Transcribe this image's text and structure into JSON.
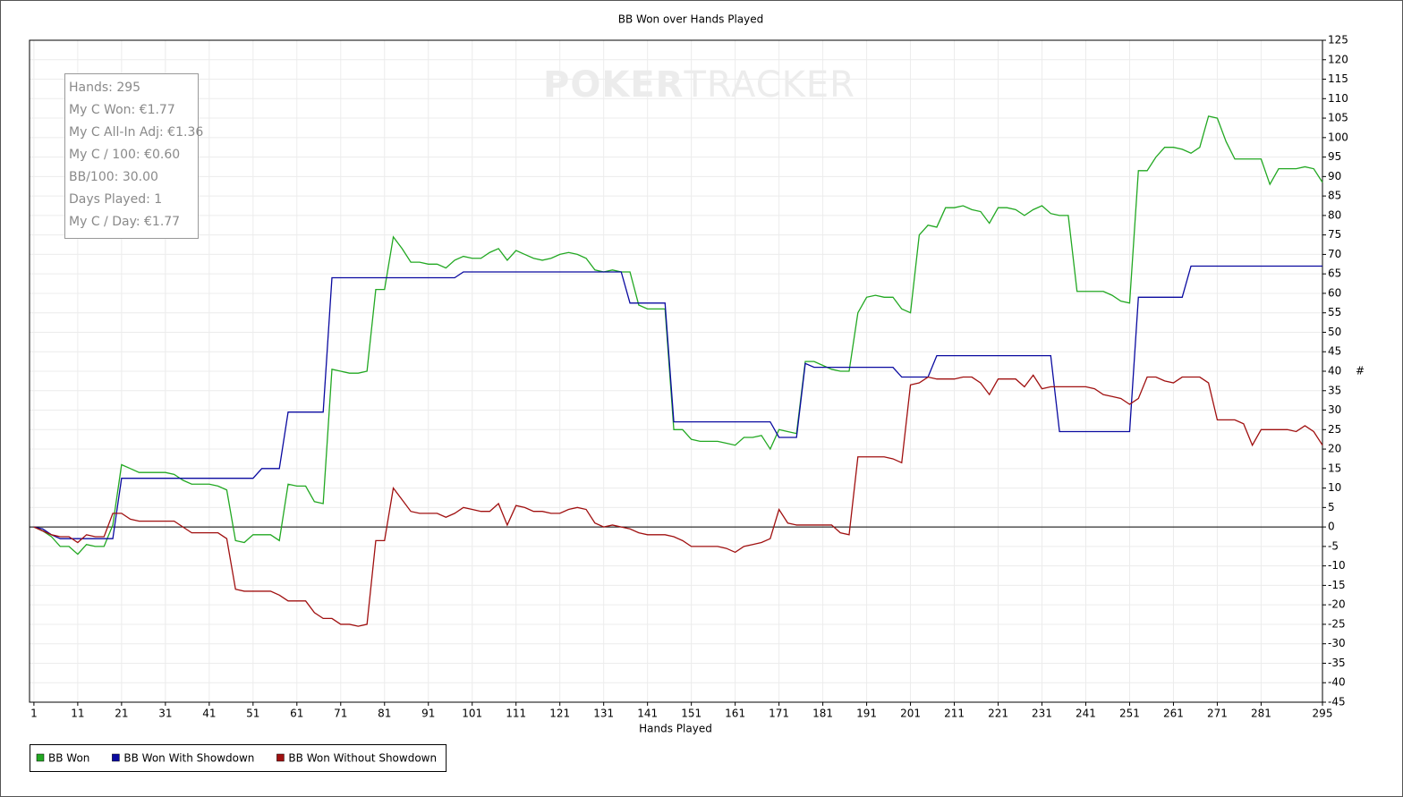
{
  "chart_data": {
    "type": "line",
    "title": "BB Won over Hands Played",
    "xlabel": "Hands Played",
    "ylabel": "#",
    "watermark": [
      "POKER",
      "TRACKER"
    ],
    "stats": [
      "Hands: 295",
      "My C Won: €1.77",
      "My C All-In Adj: €1.36",
      "My C / 100: €0.60",
      "BB/100: 30.00",
      "Days Played: 1",
      "My C / Day: €1.77"
    ],
    "grid": true,
    "legend": "bottom-left",
    "xlim": [
      0,
      295
    ],
    "ylim": [
      -45,
      125
    ],
    "xticks": [
      1,
      11,
      21,
      31,
      41,
      51,
      61,
      71,
      81,
      91,
      101,
      111,
      121,
      131,
      141,
      151,
      161,
      171,
      181,
      191,
      201,
      211,
      221,
      231,
      241,
      251,
      261,
      271,
      281,
      295
    ],
    "yticks": [
      -45,
      -40,
      -35,
      -30,
      -25,
      -20,
      -15,
      -10,
      -5,
      0,
      5,
      10,
      15,
      20,
      25,
      30,
      35,
      40,
      45,
      50,
      55,
      60,
      65,
      70,
      75,
      80,
      85,
      90,
      95,
      100,
      105,
      110,
      115,
      120,
      125
    ],
    "x": [
      1,
      3,
      5,
      7,
      9,
      11,
      13,
      15,
      17,
      19,
      21,
      23,
      25,
      27,
      29,
      31,
      33,
      35,
      37,
      39,
      41,
      43,
      45,
      47,
      49,
      51,
      53,
      55,
      57,
      59,
      61,
      63,
      65,
      67,
      69,
      71,
      73,
      75,
      77,
      79,
      81,
      83,
      85,
      87,
      89,
      91,
      93,
      95,
      97,
      99,
      101,
      103,
      105,
      107,
      109,
      111,
      113,
      115,
      117,
      119,
      121,
      123,
      125,
      127,
      129,
      131,
      133,
      135,
      137,
      139,
      141,
      143,
      145,
      147,
      149,
      151,
      153,
      155,
      157,
      159,
      161,
      163,
      165,
      167,
      169,
      171,
      173,
      175,
      177,
      179,
      181,
      183,
      185,
      187,
      189,
      191,
      193,
      195,
      197,
      199,
      201,
      203,
      205,
      207,
      209,
      211,
      213,
      215,
      217,
      219,
      221,
      223,
      225,
      227,
      229,
      231,
      233,
      235,
      237,
      239,
      241,
      243,
      245,
      247,
      249,
      251,
      253,
      255,
      257,
      259,
      261,
      263,
      265,
      267,
      269,
      271,
      273,
      275,
      277,
      279,
      281,
      283,
      285,
      287,
      289,
      291,
      293,
      295
    ],
    "series": [
      {
        "name": "BB Won",
        "color": "#22a822",
        "values": [
          0,
          -1,
          -2.5,
          -5,
          -5,
          -7,
          -4.5,
          -5,
          -5,
          0.5,
          16,
          15,
          14,
          14,
          14,
          14,
          13.5,
          12,
          11,
          11,
          11,
          10.5,
          9.5,
          -3.5,
          -4,
          -2,
          -2,
          -2,
          -3.5,
          11,
          10.5,
          10.5,
          6.5,
          6,
          40.5,
          40,
          39.5,
          39.5,
          40,
          61,
          61,
          74.5,
          71.5,
          68,
          68,
          67.5,
          67.5,
          66.5,
          68.5,
          69.5,
          69,
          69,
          70.5,
          71.5,
          68.5,
          71,
          70,
          69,
          68.5,
          69,
          70,
          70.5,
          70,
          69,
          66,
          65.5,
          66,
          65.5,
          65.5,
          57,
          56,
          56,
          56,
          25,
          25,
          22.5,
          22,
          22,
          22,
          21.5,
          21,
          23,
          23,
          23.5,
          20,
          25,
          24.5,
          24,
          42.5,
          42.5,
          41.5,
          40.5,
          40,
          40,
          55,
          59,
          59.5,
          59,
          59,
          56,
          55,
          75,
          77.5,
          77,
          82,
          82,
          82.5,
          81.5,
          81,
          78,
          82,
          82,
          81.5,
          80,
          81.5,
          82.5,
          80.5,
          80,
          80,
          60.5,
          60.5,
          60.5,
          60.5,
          59.5,
          58,
          57.5,
          91.5,
          91.5,
          95,
          97.5,
          97.5,
          97,
          96,
          97.5,
          105.5,
          105,
          99,
          94.5,
          94.5,
          94.5,
          94.5,
          88,
          92,
          92,
          92,
          92.5,
          92,
          88.5
        ]
      },
      {
        "name": "BB Won With Showdown",
        "color": "#0a0aa0",
        "values": [
          0,
          -0.5,
          -2,
          -3,
          -3,
          -3,
          -3,
          -3,
          -3,
          -3,
          12.5,
          12.5,
          12.5,
          12.5,
          12.5,
          12.5,
          12.5,
          12.5,
          12.5,
          12.5,
          12.5,
          12.5,
          12.5,
          12.5,
          12.5,
          12.5,
          15,
          15,
          15,
          29.5,
          29.5,
          29.5,
          29.5,
          29.5,
          64,
          64,
          64,
          64,
          64,
          64,
          64,
          64,
          64,
          64,
          64,
          64,
          64,
          64,
          64,
          65.5,
          65.5,
          65.5,
          65.5,
          65.5,
          65.5,
          65.5,
          65.5,
          65.5,
          65.5,
          65.5,
          65.5,
          65.5,
          65.5,
          65.5,
          65.5,
          65.5,
          65.5,
          65.5,
          57.5,
          57.5,
          57.5,
          57.5,
          57.5,
          27,
          27,
          27,
          27,
          27,
          27,
          27,
          27,
          27,
          27,
          27,
          27,
          23,
          23,
          23,
          42,
          41,
          41,
          41,
          41,
          41,
          41,
          41,
          41,
          41,
          41,
          38.5,
          38.5,
          38.5,
          38.5,
          44,
          44,
          44,
          44,
          44,
          44,
          44,
          44,
          44,
          44,
          44,
          44,
          44,
          44,
          24.5,
          24.5,
          24.5,
          24.5,
          24.5,
          24.5,
          24.5,
          24.5,
          24.5,
          59,
          59,
          59,
          59,
          59,
          59,
          67,
          67,
          67,
          67,
          67,
          67,
          67,
          67,
          67,
          67,
          67,
          67,
          67,
          67,
          67,
          67
        ]
      },
      {
        "name": "BB Won Without Showdown",
        "color": "#a01010",
        "values": [
          0,
          -1,
          -2,
          -2.5,
          -2.5,
          -4,
          -2,
          -2.5,
          -2.5,
          3.5,
          3.5,
          2,
          1.5,
          1.5,
          1.5,
          1.5,
          1.5,
          0,
          -1.5,
          -1.5,
          -1.5,
          -1.5,
          -3,
          -16,
          -16.5,
          -16.5,
          -16.5,
          -16.5,
          -17.5,
          -19,
          -19,
          -19,
          -22,
          -23.5,
          -23.5,
          -25,
          -25,
          -25.5,
          -25,
          -3.5,
          -3.5,
          10,
          7,
          4,
          3.5,
          3.5,
          3.5,
          2.5,
          3.5,
          5,
          4.5,
          4,
          4,
          6,
          0.5,
          5.5,
          5,
          4,
          4,
          3.5,
          3.5,
          4.5,
          5,
          4.5,
          1,
          0,
          0.5,
          0,
          -0.5,
          -1.5,
          -2,
          -2,
          -2,
          -2.5,
          -3.5,
          -5,
          -5,
          -5,
          -5,
          -5.5,
          -6.5,
          -5,
          -4.5,
          -4,
          -3,
          4.5,
          1,
          0.5,
          0.5,
          0.5,
          0.5,
          0.5,
          -1.5,
          -2,
          18,
          18,
          18,
          18,
          17.5,
          16.5,
          36.5,
          37,
          38.5,
          38,
          38,
          38,
          38.5,
          38.5,
          37,
          34,
          38,
          38,
          38,
          36,
          39,
          35.5,
          36,
          36,
          36,
          36,
          36,
          35.5,
          34,
          33.5,
          33,
          31.5,
          33,
          38.5,
          38.5,
          37.5,
          37,
          38.5,
          38.5,
          38.5,
          37,
          27.5,
          27.5,
          27.5,
          26.5,
          21,
          25,
          25,
          25,
          25,
          24.5,
          26,
          24.5,
          21
        ]
      }
    ]
  }
}
